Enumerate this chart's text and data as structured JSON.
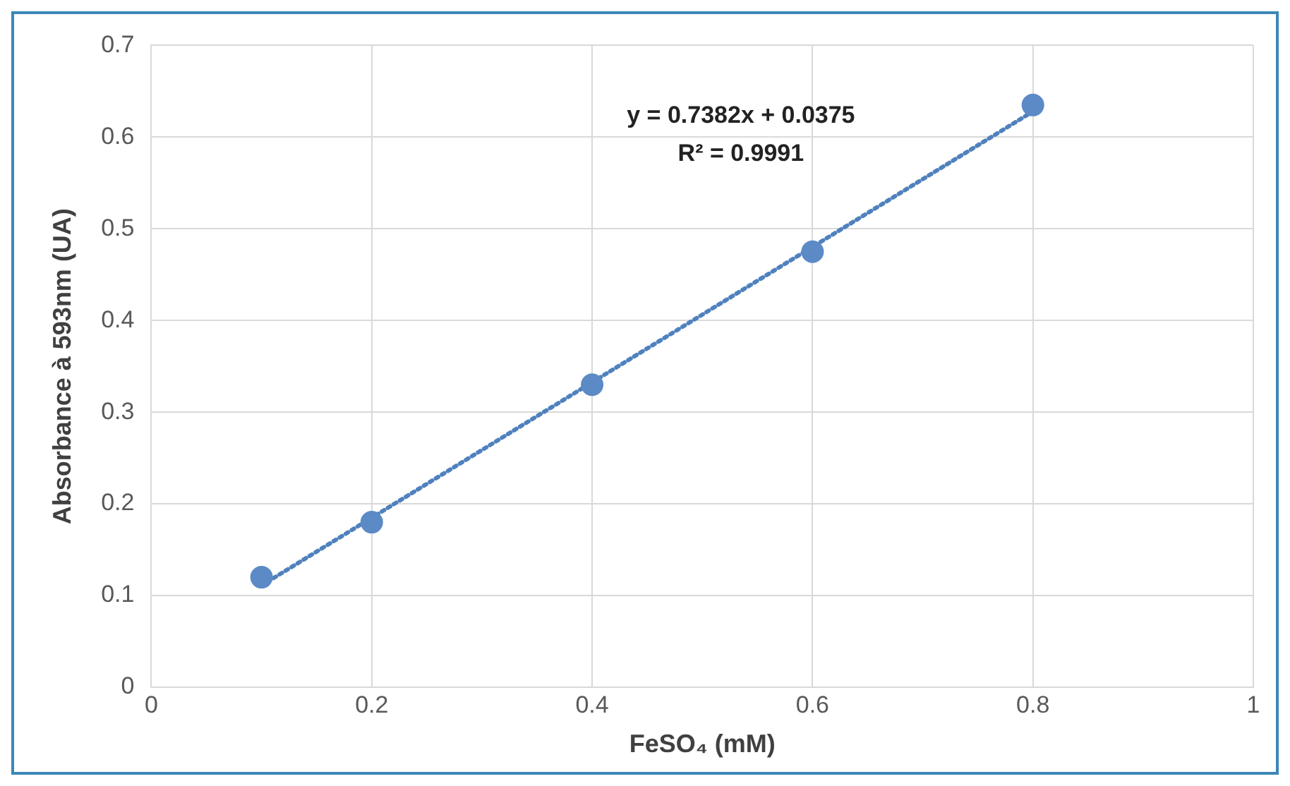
{
  "chart_data": {
    "type": "scatter",
    "xlabel": "FeSO₄ (mM)",
    "ylabel": "Absorbance à 593nm (UA)",
    "x": [
      0.1,
      0.2,
      0.4,
      0.6,
      0.8
    ],
    "series": [
      {
        "color": "#5b8ac6",
        "values": [
          0.12,
          0.18,
          0.33,
          0.475,
          0.635
        ],
        "marker": "circle"
      },
      {
        "type": "line",
        "color": "#4f81bd",
        "x": [
          0.1,
          0.8
        ],
        "values": [
          0.111,
          0.628
        ],
        "line_style": "dotted",
        "marker": "none"
      }
    ],
    "xlim": [
      0,
      1
    ],
    "xticks": [
      0,
      0.2,
      0.4,
      0.6,
      0.8,
      1
    ],
    "ylim": [
      0,
      0.7
    ],
    "yticks": [
      0,
      0.1,
      0.2,
      0.3,
      0.4,
      0.5,
      0.6,
      0.7
    ],
    "grid": true,
    "legend": false,
    "annotations": [
      "y = 0.7382x + 0.0375",
      "R² = 0.9991"
    ]
  }
}
